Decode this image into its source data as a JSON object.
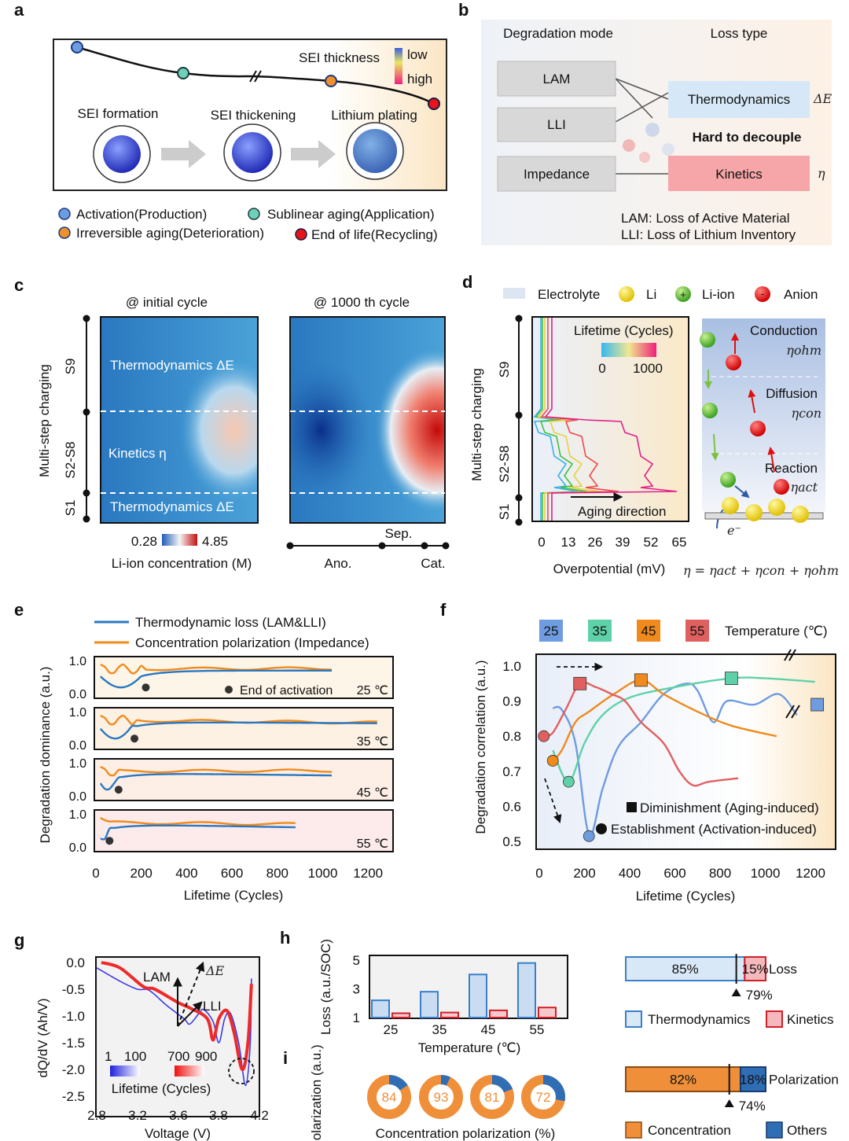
{
  "panel_labels": [
    "a",
    "b",
    "c",
    "d",
    "e",
    "f",
    "g",
    "h",
    "i"
  ],
  "a": {
    "sei_thickness": "SEI thickness",
    "low": "low",
    "high": "high",
    "stages": [
      "SEI formation",
      "SEI thickening",
      "Lithium plating"
    ],
    "legend": [
      {
        "label": "Activation(Production)",
        "color": "#6f9be0"
      },
      {
        "label": "Sublinear aging(Application)",
        "color": "#6fd0b8"
      },
      {
        "label": "Irreversible aging(Deterioration)",
        "color": "#f0902a"
      },
      {
        "label": "End of life(Recycling)",
        "color": "#e8141c"
      }
    ]
  },
  "b": {
    "header_mode": "Degradation mode",
    "header_loss": "Loss type",
    "modes": [
      "LAM",
      "LLI",
      "Impedance"
    ],
    "thermo": "Thermodynamics",
    "thermo_sym": "ΔE",
    "kinetics": "Kinetics",
    "kinetics_sym": "η",
    "hard": "Hard to decouple",
    "note1": "LAM: Loss of Active Material",
    "note2": "LLI: Loss of Lithium Inventory"
  },
  "c": {
    "title1": "@ initial cycle",
    "title2": "@ 1000 th cycle",
    "ylabel": "Multi-step charging",
    "steps": [
      "S9",
      "S2-S8",
      "S1"
    ],
    "region_thermo": "Thermodynamics  ΔE",
    "region_kin": "Kinetics  η",
    "cb_min": "0.28",
    "cb_max": "4.85",
    "cb_label": "Li-ion concentration (M)",
    "sep": "Sep.",
    "ano": "Ano.",
    "cat": "Cat."
  },
  "d": {
    "legend": [
      "Electrolyte",
      "Li",
      "Li-ion",
      "Anion"
    ],
    "ylabel": "Multi-step charging",
    "steps": [
      "S9",
      "S2-S8",
      "S1"
    ],
    "lifetime": "Lifetime (Cycles)",
    "cb_min": "0",
    "cb_max": "1000",
    "aging": "Aging direction",
    "xticks": [
      "0",
      "13",
      "26",
      "39",
      "52",
      "65"
    ],
    "xlabel": "Overpotential (mV)",
    "conduction": "Conduction",
    "eta_ohm": "ηohm",
    "diffusion": "Diffusion",
    "eta_con": "ηcon",
    "reaction": "Reaction",
    "eta_act": "ηact",
    "electron": "e⁻",
    "equation": "η = ηact + ηcon + ηohm"
  },
  "chart_data": [
    {
      "id": "e",
      "type": "line",
      "legend": [
        "Thermodynamic loss (LAM&LLI)",
        "Concentration polarization (Impedance)"
      ],
      "legend_colors": [
        "#2b78c0",
        "#f08a1c"
      ],
      "ylabel": "Degradation dominance (a.u.)",
      "xlabel": "Lifetime (Cycles)",
      "xticks": [
        "0",
        "200",
        "400",
        "600",
        "800",
        "1000",
        "1200"
      ],
      "xlim": [
        0,
        1200
      ],
      "yticks": [
        "1.0",
        "0.0"
      ],
      "ylim": [
        0,
        1
      ],
      "annotation": "End of activation",
      "subplots": [
        {
          "temp": "25 ℃",
          "end": 1050,
          "act": 220,
          "bg": "#fdf5e8"
        },
        {
          "temp": "35 ℃",
          "end": 1250,
          "act": 170,
          "bg": "#fdf1e4"
        },
        {
          "temp": "45 ℃",
          "end": 1050,
          "act": 100,
          "bg": "#fdefe6"
        },
        {
          "temp": "55 ℃",
          "end": 880,
          "act": 60,
          "bg": "#fdeaea"
        }
      ]
    },
    {
      "id": "f",
      "type": "line",
      "legend_title": "Temperature (℃)",
      "xlabel": "Lifetime (Cycles)",
      "ylabel": "Degradation correlation (a.u.)",
      "xticks": [
        "0",
        "200",
        "400",
        "600",
        "800",
        "1000",
        "1200"
      ],
      "xlim": [
        0,
        1200
      ],
      "yticks": [
        "1.0",
        "0.9",
        "0.8",
        "0.7",
        "0.6",
        "0.5"
      ],
      "ylim": [
        0.48,
        1.03
      ],
      "marker_square": "Diminishment (Aging-induced)",
      "marker_circle": "Establishment (Activation-induced)",
      "series": [
        {
          "name": "25",
          "color": "#6f9be0",
          "x": [
            60,
            100,
            160,
            220,
            280,
            350,
            450,
            550,
            650,
            700,
            770,
            830,
            950,
            1060,
            1140
          ],
          "y": [
            0.88,
            0.875,
            0.78,
            0.52,
            0.65,
            0.77,
            0.84,
            0.92,
            0.95,
            0.93,
            0.84,
            0.9,
            0.89,
            0.92,
            0.86
          ],
          "circle": [
            220,
            0.515
          ],
          "square": [
            1230,
            0.89
          ]
        },
        {
          "name": "35",
          "color": "#5fd1a8",
          "x": [
            60,
            130,
            200,
            280,
            400,
            600,
            850,
            1000,
            1220
          ],
          "y": [
            0.76,
            0.67,
            0.78,
            0.86,
            0.91,
            0.94,
            0.965,
            0.965,
            0.955
          ],
          "circle": [
            130,
            0.67
          ],
          "square": [
            850,
            0.965
          ]
        },
        {
          "name": "45",
          "color": "#f08a1c",
          "x": [
            60,
            100,
            160,
            220,
            330,
            450,
            550,
            700,
            850,
            1050
          ],
          "y": [
            0.73,
            0.76,
            0.84,
            0.87,
            0.92,
            0.96,
            0.92,
            0.87,
            0.83,
            0.8
          ],
          "circle": [
            60,
            0.73
          ],
          "square": [
            450,
            0.96
          ]
        },
        {
          "name": "55",
          "color": "#e06060",
          "x": [
            20,
            60,
            120,
            180,
            250,
            320,
            380,
            450,
            550,
            620,
            680,
            750,
            880
          ],
          "y": [
            0.8,
            0.81,
            0.88,
            0.95,
            0.94,
            0.92,
            0.9,
            0.84,
            0.78,
            0.7,
            0.66,
            0.67,
            0.68
          ],
          "circle": [
            20,
            0.8
          ],
          "square": [
            180,
            0.95
          ]
        }
      ]
    },
    {
      "id": "g",
      "type": "line",
      "xlabel": "Voltage (V)",
      "ylabel": "dQ/dV (Ah/V)",
      "xticks": [
        "2.8",
        "3.2",
        "3.6",
        "3.8",
        "4.2"
      ],
      "xlim": [
        2.8,
        4.2
      ],
      "yticks": [
        "0.0",
        "-0.5",
        "-1.0",
        "-1.5",
        "-2.0",
        "-2.5"
      ],
      "ylim": [
        -2.5,
        0
      ],
      "annotations": [
        "LAM",
        "ΔE",
        "LLI"
      ],
      "colorbar_ticks_blue": [
        "1",
        "100"
      ],
      "colorbar_ticks_red": [
        "700",
        "900"
      ],
      "colorbar_label": "Lifetime (Cycles)",
      "series": [
        {
          "color": "#3a3ae8",
          "x": [
            2.8,
            3.0,
            3.15,
            3.25,
            3.4,
            3.55,
            3.6,
            3.68,
            3.72,
            3.8,
            3.85,
            3.9,
            3.95,
            4.02,
            4.08,
            4.12,
            4.13
          ],
          "y": [
            -0.1,
            -0.35,
            -0.5,
            -0.52,
            -0.8,
            -1.05,
            -1.15,
            -0.95,
            -0.88,
            -1.1,
            -1.5,
            -1.05,
            -0.95,
            -1.5,
            -2.3,
            -1.5,
            -0.3
          ]
        },
        {
          "color": "#ee2a2a",
          "x": [
            2.84,
            3.0,
            3.2,
            3.3,
            3.5,
            3.6,
            3.75,
            3.8,
            3.85,
            3.92,
            3.98,
            4.05,
            4.1,
            4.13
          ],
          "y": [
            0.0,
            -0.1,
            -0.45,
            -0.5,
            -0.75,
            -0.85,
            -1.05,
            -1.45,
            -1.05,
            -0.9,
            -1.3,
            -2.0,
            -1.5,
            -0.4
          ]
        }
      ]
    },
    {
      "id": "h",
      "type": "bar",
      "categories": [
        "25",
        "35",
        "45",
        "55"
      ],
      "xlabel": "Temperature (℃)",
      "ylabel": "Loss (a.u./SOC)",
      "yticks": [
        "5",
        "3",
        "1"
      ],
      "ylim": [
        1,
        5
      ],
      "series": [
        {
          "name": "Thermodynamics",
          "color": "#c9dcf2",
          "edge": "#3a7fc8",
          "values": [
            2.2,
            2.8,
            4.0,
            4.8
          ]
        },
        {
          "name": "Kinetics",
          "color": "#f7c8cc",
          "edge": "#d0202a",
          "values": [
            1.3,
            1.35,
            1.5,
            1.7
          ]
        }
      ],
      "stacked": {
        "parts": [
          {
            "label": "85%",
            "value": 85,
            "color": "#d9e8f7"
          },
          {
            "label": "15%",
            "value": 15,
            "color": "#f5b9bd"
          }
        ],
        "name": "Loss",
        "marker": 79,
        "marker_label": "79%"
      }
    },
    {
      "id": "i",
      "type": "pie",
      "values": [
        84,
        93,
        81,
        72
      ],
      "labels": [
        "84",
        "93",
        "81",
        "72"
      ],
      "xlabel": "Concentration polarization (%)",
      "ylabel": "Polarization (a.u.)",
      "colors": {
        "main": "#ef8f3a",
        "other": "#2f6db5"
      },
      "stacked": {
        "parts": [
          {
            "label": "82%",
            "value": 82,
            "color": "#ef8f3a"
          },
          {
            "label": "18%",
            "value": 18,
            "color": "#2f6db5"
          }
        ],
        "name": "Polarization",
        "marker": 74,
        "marker_label": "74%"
      },
      "legend": [
        "Concentration",
        "Others"
      ]
    }
  ]
}
